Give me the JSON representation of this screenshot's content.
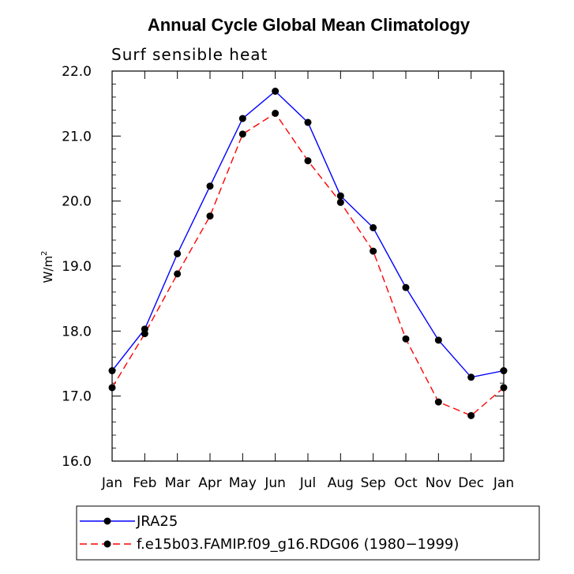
{
  "chart_data": {
    "type": "line",
    "title": "Annual Cycle Global Mean Climatology",
    "subtitle": "Surf sensible heat",
    "ylabel": "W/m",
    "ylabel_superscript": "2",
    "categories": [
      "Jan",
      "Feb",
      "Mar",
      "Apr",
      "May",
      "Jun",
      "Jul",
      "Aug",
      "Sep",
      "Oct",
      "Nov",
      "Dec",
      "Jan"
    ],
    "ylim": [
      16.0,
      22.0
    ],
    "yticks": [
      "16.0",
      "17.0",
      "18.0",
      "19.0",
      "20.0",
      "21.0",
      "22.0"
    ],
    "grid": false,
    "legend_position": "bottom",
    "series": [
      {
        "name": "JRA25",
        "color": "#0000ff",
        "line_style": "solid",
        "values": [
          17.39,
          18.03,
          19.19,
          20.23,
          21.27,
          21.69,
          21.21,
          20.08,
          19.59,
          18.67,
          17.86,
          17.29,
          17.39
        ]
      },
      {
        "name": "f.e15b03.FAMIP.f09_g16.RDG06 (1980−1999)",
        "color": "#ff0000",
        "line_style": "dashed",
        "values": [
          17.13,
          17.96,
          18.88,
          19.77,
          21.03,
          21.35,
          20.62,
          19.98,
          19.23,
          17.88,
          16.91,
          16.7,
          17.13
        ]
      }
    ]
  }
}
